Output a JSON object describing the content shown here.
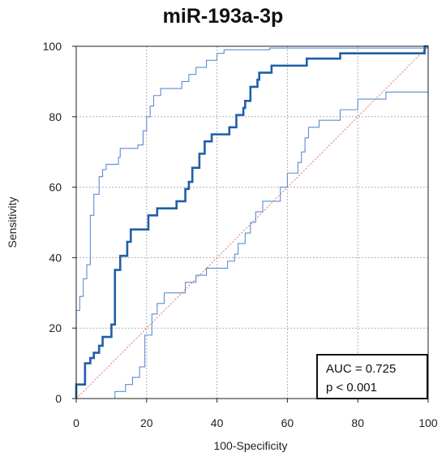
{
  "chart_data": {
    "type": "line",
    "title": "miR-193a-3p",
    "xlabel": "100-Specificity",
    "ylabel": "Sensitivity",
    "xlim": [
      0,
      100
    ],
    "ylim": [
      0,
      100
    ],
    "x_ticks": [
      "0",
      "20",
      "40",
      "60",
      "80",
      "100"
    ],
    "y_ticks": [
      "0",
      "20",
      "40",
      "60",
      "80",
      "100"
    ],
    "grid": true,
    "annotation": {
      "auc": "AUC = 0.725",
      "p": "p < 0.001",
      "placement": "bottom-right"
    },
    "colors": {
      "roc": "#1f5fa8",
      "ci": "#5a8fd0",
      "reference": "#e87070",
      "grid": "#b0b0b0"
    },
    "series": [
      {
        "role": "roc-curve",
        "points": [
          [
            0,
            0
          ],
          [
            0,
            4
          ],
          [
            2.5,
            4
          ],
          [
            2.5,
            10
          ],
          [
            4,
            10
          ],
          [
            4,
            11.5
          ],
          [
            5,
            11.5
          ],
          [
            5,
            13
          ],
          [
            6.5,
            13
          ],
          [
            6.5,
            15
          ],
          [
            7.5,
            15
          ],
          [
            7.5,
            17.5
          ],
          [
            10,
            17.5
          ],
          [
            10,
            21
          ],
          [
            11,
            21
          ],
          [
            11,
            36.5
          ],
          [
            12.5,
            36.5
          ],
          [
            12.5,
            40.5
          ],
          [
            14.5,
            40.5
          ],
          [
            14.5,
            44.5
          ],
          [
            15.5,
            44.5
          ],
          [
            15.5,
            48
          ],
          [
            20.5,
            48
          ],
          [
            20.5,
            52
          ],
          [
            23,
            52
          ],
          [
            23,
            54
          ],
          [
            28.5,
            54
          ],
          [
            28.5,
            56
          ],
          [
            31,
            56
          ],
          [
            31,
            59.5
          ],
          [
            32,
            59.5
          ],
          [
            32,
            61.5
          ],
          [
            33,
            61.5
          ],
          [
            33,
            65.5
          ],
          [
            35,
            65.5
          ],
          [
            35,
            69.5
          ],
          [
            36.5,
            69.5
          ],
          [
            36.5,
            73
          ],
          [
            38.5,
            73
          ],
          [
            38.5,
            75
          ],
          [
            43.5,
            75
          ],
          [
            43.5,
            77
          ],
          [
            45.5,
            77
          ],
          [
            45.5,
            80.5
          ],
          [
            47.5,
            80.5
          ],
          [
            47.5,
            82.5
          ],
          [
            48,
            82.5
          ],
          [
            48,
            84.5
          ],
          [
            49.5,
            84.5
          ],
          [
            49.5,
            88.5
          ],
          [
            51.5,
            88.5
          ],
          [
            51.5,
            90.5
          ],
          [
            52,
            90.5
          ],
          [
            52,
            92.5
          ],
          [
            55.5,
            92.5
          ],
          [
            55.5,
            94.5
          ],
          [
            65.5,
            94.5
          ],
          [
            65.5,
            96.5
          ],
          [
            75,
            96.5
          ],
          [
            75,
            98
          ],
          [
            99,
            98
          ],
          [
            99,
            100
          ],
          [
            100,
            100
          ]
        ]
      },
      {
        "role": "ci-upper",
        "points": [
          [
            0,
            0
          ],
          [
            0,
            25
          ],
          [
            1,
            25
          ],
          [
            1,
            29
          ],
          [
            2,
            29
          ],
          [
            2,
            34
          ],
          [
            3,
            34
          ],
          [
            3,
            38
          ],
          [
            4,
            38
          ],
          [
            4,
            52
          ],
          [
            5,
            52
          ],
          [
            5,
            58
          ],
          [
            6.5,
            58
          ],
          [
            6.5,
            63
          ],
          [
            7.5,
            63
          ],
          [
            7.5,
            65
          ],
          [
            8.5,
            65
          ],
          [
            8.5,
            66.5
          ],
          [
            12,
            66.5
          ],
          [
            12,
            68.5
          ],
          [
            12.5,
            68.5
          ],
          [
            12.5,
            71
          ],
          [
            17.5,
            71
          ],
          [
            17.5,
            72
          ],
          [
            19,
            72
          ],
          [
            19,
            76
          ],
          [
            20,
            76
          ],
          [
            20,
            80
          ],
          [
            21,
            80
          ],
          [
            21,
            83
          ],
          [
            22,
            83
          ],
          [
            22,
            86
          ],
          [
            24,
            86
          ],
          [
            24,
            88
          ],
          [
            30,
            88
          ],
          [
            30,
            90
          ],
          [
            32,
            90
          ],
          [
            32,
            92
          ],
          [
            34,
            92
          ],
          [
            34,
            94
          ],
          [
            37,
            94
          ],
          [
            37,
            96
          ],
          [
            40,
            96
          ],
          [
            40,
            98
          ],
          [
            42,
            98
          ],
          [
            42,
            99
          ],
          [
            55,
            99
          ],
          [
            55,
            99.5
          ],
          [
            100,
            99.5
          ],
          [
            100,
            100
          ]
        ]
      },
      {
        "role": "ci-lower",
        "points": [
          [
            0,
            0
          ],
          [
            11,
            0
          ],
          [
            11,
            2
          ],
          [
            14,
            2
          ],
          [
            14,
            4
          ],
          [
            16,
            4
          ],
          [
            16,
            6
          ],
          [
            18,
            6
          ],
          [
            18,
            9
          ],
          [
            19.5,
            9
          ],
          [
            19.5,
            18
          ],
          [
            21.5,
            18
          ],
          [
            21.5,
            24
          ],
          [
            23,
            24
          ],
          [
            23,
            27
          ],
          [
            25,
            27
          ],
          [
            25,
            30
          ],
          [
            31,
            30
          ],
          [
            31,
            33
          ],
          [
            34,
            33
          ],
          [
            34,
            35
          ],
          [
            37,
            35
          ],
          [
            37,
            37
          ],
          [
            43,
            37
          ],
          [
            43,
            39
          ],
          [
            45,
            39
          ],
          [
            45,
            41
          ],
          [
            46,
            41
          ],
          [
            46,
            44
          ],
          [
            48,
            44
          ],
          [
            48,
            47
          ],
          [
            49.5,
            47
          ],
          [
            49.5,
            50
          ],
          [
            51,
            50
          ],
          [
            51,
            53
          ],
          [
            53,
            53
          ],
          [
            53,
            56
          ],
          [
            58,
            56
          ],
          [
            58,
            60
          ],
          [
            60,
            60
          ],
          [
            60,
            64
          ],
          [
            63,
            64
          ],
          [
            63,
            67
          ],
          [
            64,
            67
          ],
          [
            64,
            70
          ],
          [
            65,
            70
          ],
          [
            65,
            74
          ],
          [
            66,
            74
          ],
          [
            66,
            77
          ],
          [
            69,
            77
          ],
          [
            69,
            79
          ],
          [
            75,
            79
          ],
          [
            75,
            82
          ],
          [
            80,
            82
          ],
          [
            80,
            85
          ],
          [
            88,
            85
          ],
          [
            88,
            87
          ],
          [
            100,
            87
          ],
          [
            100,
            100
          ]
        ]
      }
    ]
  }
}
